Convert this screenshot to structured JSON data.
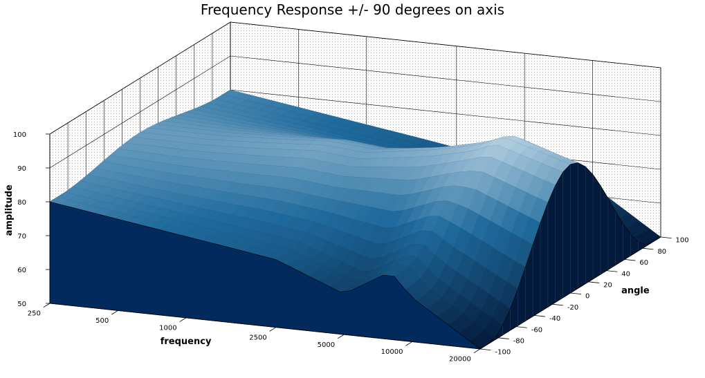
{
  "chart_data": {
    "type": "surface",
    "title": "Frequency Response +/- 90 degrees on axis",
    "xlabel": "frequency",
    "ylabel": "angle",
    "zlabel": "amplitude",
    "x_ticks": [
      "250",
      "500",
      "1000",
      "2500",
      "5000",
      "10000",
      "20000"
    ],
    "y_ticks": [
      "-100",
      "-80",
      "-60",
      "-40",
      "-20",
      "0",
      "20",
      "40",
      "60",
      "80",
      "100"
    ],
    "z_ticks": [
      "50",
      "60",
      "70",
      "80",
      "90",
      "100"
    ],
    "xlim": [
      250,
      20000
    ],
    "x_scale": "log",
    "ylim": [
      -100,
      100
    ],
    "zlim": [
      50,
      100
    ],
    "grid": true,
    "colormap": "blue",
    "colors": {
      "low": "#041a3a",
      "mid": "#1e6a9c",
      "high": "#e8f2f8",
      "front_face": "#022a5c"
    },
    "approx_profiles": [
      {
        "angle": -90,
        "frequency": [
          250,
          500,
          1000,
          1600,
          2500,
          5000,
          8000,
          10000,
          20000
        ],
        "amplitude": [
          80,
          77,
          74,
          72,
          70,
          62,
          70,
          63,
          50
        ]
      },
      {
        "angle": 0,
        "frequency": [
          250,
          500,
          1000,
          1600,
          2500,
          5000,
          8000,
          10000,
          20000
        ],
        "amplitude": [
          84,
          84,
          85,
          86,
          85,
          88,
          91,
          94,
          88
        ]
      },
      {
        "angle": 90,
        "frequency": [
          250,
          500,
          1000,
          1600,
          2500,
          5000,
          8000,
          10000,
          20000
        ],
        "amplitude": [
          80,
          77,
          74,
          72,
          70,
          62,
          70,
          63,
          50
        ]
      }
    ]
  }
}
